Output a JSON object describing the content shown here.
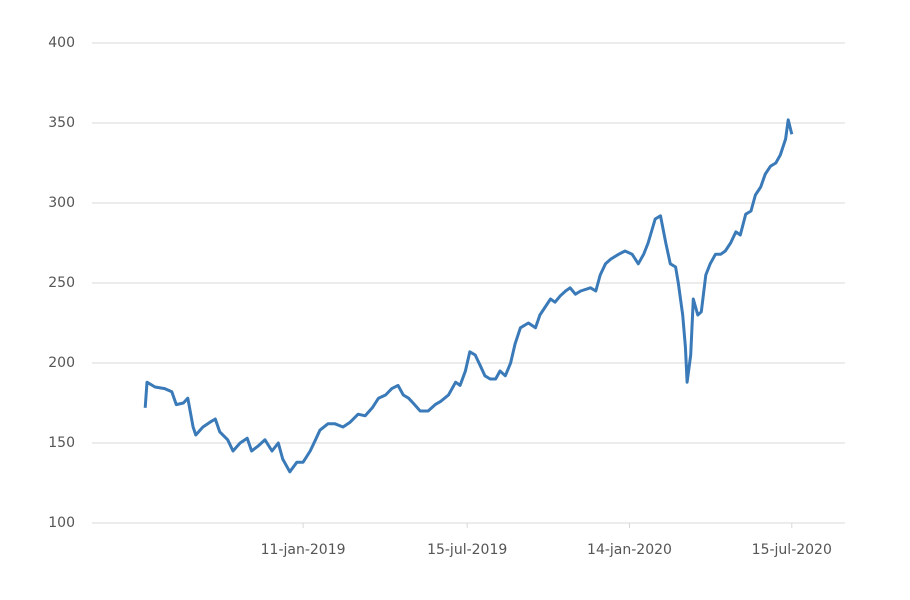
{
  "chart_data": {
    "type": "line",
    "color": "#3a7ab8",
    "grid": true,
    "x": [
      "2018-07-17",
      "2018-07-19",
      "2018-07-28",
      "2018-08-08",
      "2018-08-16",
      "2018-08-21",
      "2018-08-29",
      "2018-09-03",
      "2018-09-09",
      "2018-09-12",
      "2018-09-20",
      "2018-09-28",
      "2018-10-04",
      "2018-10-09",
      "2018-10-18",
      "2018-10-24",
      "2018-11-01",
      "2018-11-09",
      "2018-11-14",
      "2018-11-21",
      "2018-11-29",
      "2018-12-07",
      "2018-12-14",
      "2018-12-19",
      "2018-12-27",
      "2019-01-04",
      "2019-01-11",
      "2019-01-19",
      "2019-01-25",
      "2019-01-30",
      "2019-02-08",
      "2019-02-16",
      "2019-02-25",
      "2019-03-05",
      "2019-03-14",
      "2019-03-22",
      "2019-03-30",
      "2019-04-06",
      "2019-04-14",
      "2019-04-21",
      "2019-04-28",
      "2019-05-04",
      "2019-05-10",
      "2019-05-15",
      "2019-05-23",
      "2019-06-01",
      "2019-06-09",
      "2019-06-15",
      "2019-06-24",
      "2019-07-02",
      "2019-07-07",
      "2019-07-13",
      "2019-07-18",
      "2019-07-24",
      "2019-07-30",
      "2019-08-04",
      "2019-08-10",
      "2019-08-16",
      "2019-08-21",
      "2019-08-27",
      "2019-09-02",
      "2019-09-07",
      "2019-09-13",
      "2019-09-22",
      "2019-09-30",
      "2019-10-05",
      "2019-10-11",
      "2019-10-17",
      "2019-10-22",
      "2019-10-28",
      "2019-11-03",
      "2019-11-08",
      "2019-11-14",
      "2019-11-20",
      "2019-12-01",
      "2019-12-07",
      "2019-12-12",
      "2019-12-18",
      "2019-12-24",
      "2020-01-02",
      "2020-01-09",
      "2020-01-17",
      "2020-01-24",
      "2020-01-30",
      "2020-02-04",
      "2020-02-12",
      "2020-02-18",
      "2020-02-24",
      "2020-02-29",
      "2020-03-06",
      "2020-03-09",
      "2020-03-14",
      "2020-03-17",
      "2020-03-19",
      "2020-03-23",
      "2020-03-26",
      "2020-03-31",
      "2020-04-04",
      "2020-04-09",
      "2020-04-14",
      "2020-04-20",
      "2020-04-26",
      "2020-05-01",
      "2020-05-07",
      "2020-05-13",
      "2020-05-18",
      "2020-05-24",
      "2020-05-30",
      "2020-06-04",
      "2020-06-10",
      "2020-06-15",
      "2020-06-21",
      "2020-06-27",
      "2020-07-02",
      "2020-07-08",
      "2020-07-11",
      "2020-07-15"
    ],
    "values": [
      172,
      188,
      185,
      184,
      182,
      174,
      175,
      178,
      160,
      155,
      160,
      163,
      165,
      157,
      152,
      145,
      150,
      153,
      145,
      148,
      152,
      145,
      150,
      140,
      132,
      138,
      138,
      145,
      152,
      158,
      162,
      162,
      160,
      163,
      168,
      167,
      172,
      178,
      180,
      184,
      186,
      180,
      178,
      175,
      170,
      170,
      174,
      176,
      180,
      188,
      186,
      195,
      207,
      205,
      198,
      192,
      190,
      190,
      195,
      192,
      200,
      212,
      222,
      225,
      222,
      230,
      235,
      240,
      238,
      242,
      245,
      247,
      243,
      245,
      247,
      245,
      255,
      262,
      265,
      268,
      270,
      268,
      262,
      268,
      275,
      290,
      292,
      275,
      262,
      260,
      250,
      230,
      210,
      188,
      205,
      240,
      230,
      232,
      255,
      262,
      268,
      268,
      270,
      275,
      282,
      280,
      293,
      295,
      305,
      310,
      318,
      323,
      325,
      330,
      340,
      352,
      343
    ],
    "xlim": [
      "2018-05-18",
      "2020-09-13"
    ],
    "xticks": [
      {
        "value": "2019-01-11",
        "label": "11-jan-2019"
      },
      {
        "value": "2019-07-15",
        "label": "15-jul-2019"
      },
      {
        "value": "2020-01-14",
        "label": "14-jan-2020"
      },
      {
        "value": "2020-07-15",
        "label": "15-jul-2020"
      }
    ],
    "ylim": [
      100,
      400
    ],
    "yticks": [
      100,
      150,
      200,
      250,
      300,
      350,
      400
    ]
  }
}
